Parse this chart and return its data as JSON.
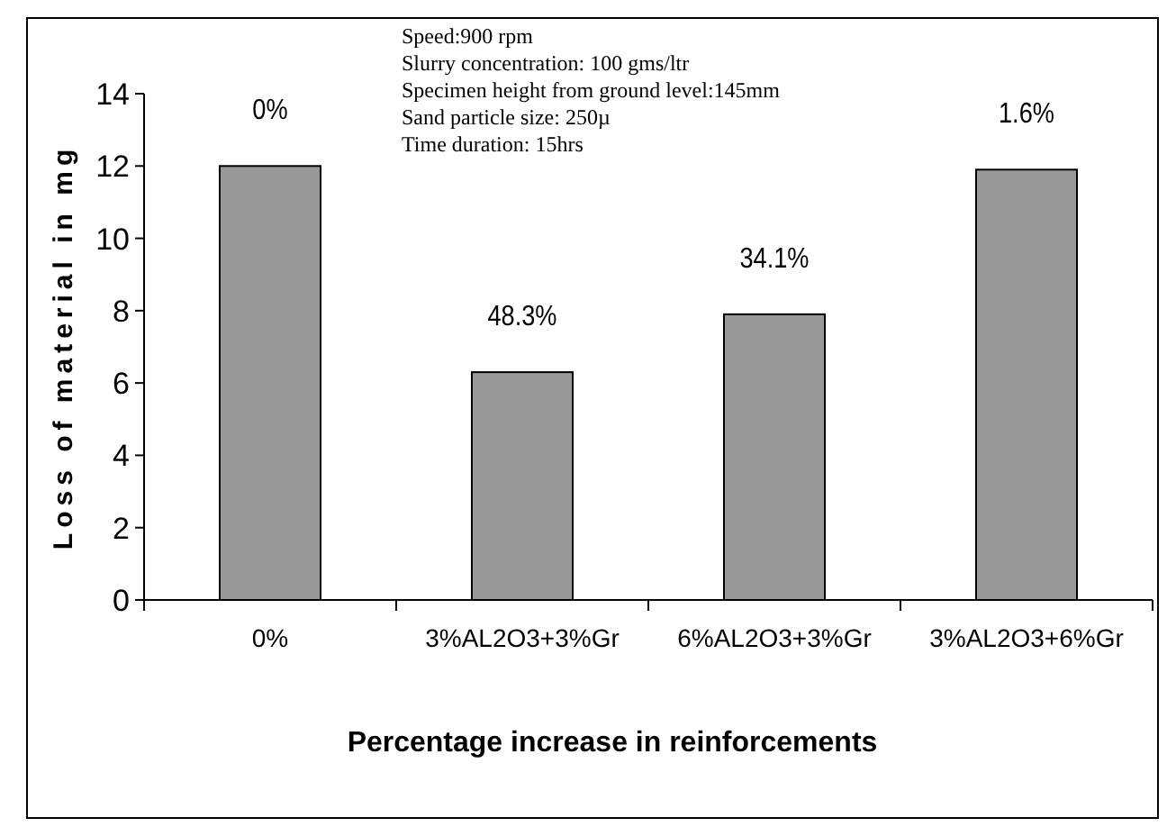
{
  "chart_data": {
    "type": "bar",
    "xlabel": "Percentage increase in reinforcements",
    "ylabel": "Loss of material in mg",
    "categories": [
      "0%",
      "3%AL2O3+3%Gr",
      "6%AL2O3+3%Gr",
      "3%AL2O3+6%Gr"
    ],
    "values": [
      12.0,
      6.3,
      7.9,
      11.9
    ],
    "color": "#999999",
    "ylim": [
      0,
      14
    ],
    "yticks": [
      0,
      2,
      4,
      6,
      8,
      10,
      12,
      14
    ],
    "grid": false,
    "annotations": [
      "Speed:900 rpm",
      "Slurry concentration: 100 gms/ltr",
      "Specimen height from ground level:145mm",
      "Sand particle size: 250µ",
      "Time duration: 15hrs",
      {
        "text": "0%",
        "x": "0%",
        "y": 12.0
      },
      {
        "text": "48.3%",
        "x": "3%AL2O3+3%Gr",
        "y": 6.3
      },
      {
        "text": "34.1%",
        "x": "6%AL2O3+3%Gr",
        "y": 7.9
      },
      {
        "text": "1.6%",
        "x": "3%AL2O3+6%Gr",
        "y": 11.9
      }
    ]
  }
}
